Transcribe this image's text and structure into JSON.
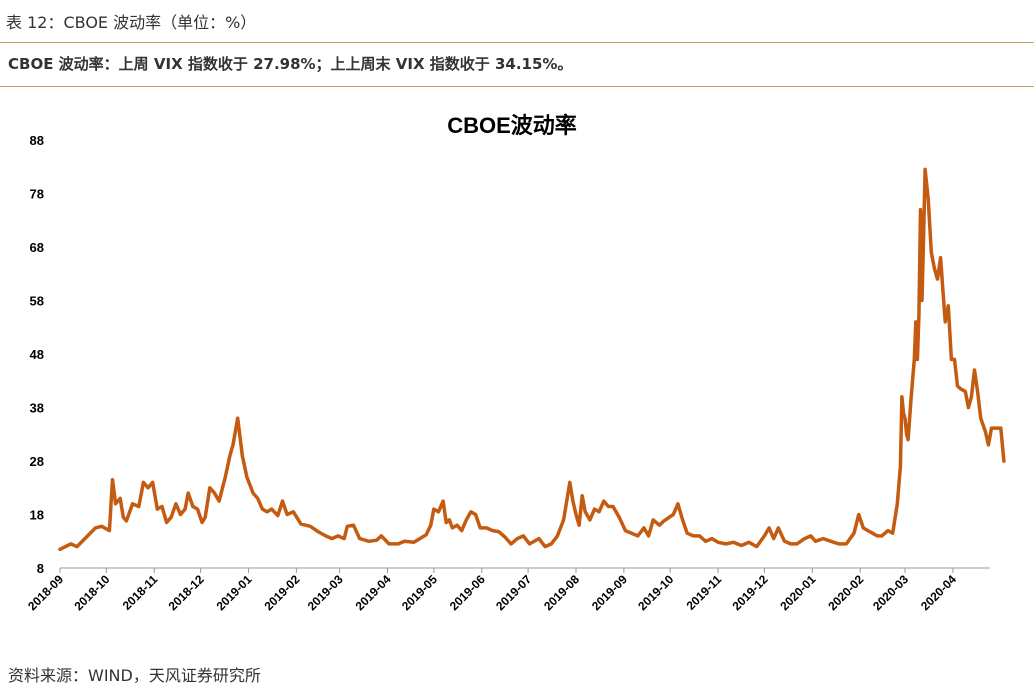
{
  "header": {
    "caption": "表 12：CBOE 波动率（单位：%）",
    "summary": "CBOE 波动率：上周 VIX 指数收于 27.98%；上上周末 VIX 指数收于 34.15%。"
  },
  "footer": {
    "source": "资料来源：WIND，天风证券研究所"
  },
  "colors": {
    "line": "#c55a11",
    "rule": "#c9a066"
  },
  "chart_data": {
    "type": "line",
    "title": "CBOE波动率",
    "xlabel": "",
    "ylabel": "",
    "ylim": [
      8,
      88
    ],
    "yticks": [
      8,
      18,
      28,
      38,
      48,
      58,
      68,
      78,
      88
    ],
    "xlim": [
      "2018-09-01",
      "2020-04-22"
    ],
    "xticks": [
      "2018-09",
      "2018-10",
      "2018-11",
      "2018-12",
      "2019-01",
      "2019-02",
      "2019-03",
      "2019-04",
      "2019-05",
      "2019-06",
      "2019-07",
      "2019-08",
      "2019-09",
      "2019-10",
      "2019-11",
      "2019-12",
      "2020-01",
      "2020-02",
      "2020-03",
      "2020-04"
    ],
    "grid": false,
    "legend": "none",
    "series": [
      {
        "points": [
          [
            "2018-09-01",
            11.5
          ],
          [
            "2018-09-08",
            12.5
          ],
          [
            "2018-09-12",
            12.0
          ],
          [
            "2018-09-24",
            15.5
          ],
          [
            "2018-09-28",
            15.8
          ],
          [
            "2018-10-03",
            15.0
          ],
          [
            "2018-10-05",
            24.5
          ],
          [
            "2018-10-07",
            20.0
          ],
          [
            "2018-10-10",
            21.0
          ],
          [
            "2018-10-12",
            17.5
          ],
          [
            "2018-10-14",
            16.8
          ],
          [
            "2018-10-18",
            20.0
          ],
          [
            "2018-10-22",
            19.5
          ],
          [
            "2018-10-25",
            24.0
          ],
          [
            "2018-10-28",
            23.0
          ],
          [
            "2018-10-31",
            24.0
          ],
          [
            "2018-11-03",
            19.0
          ],
          [
            "2018-11-06",
            19.5
          ],
          [
            "2018-11-09",
            16.5
          ],
          [
            "2018-11-12",
            17.5
          ],
          [
            "2018-11-15",
            20.0
          ],
          [
            "2018-11-18",
            18.0
          ],
          [
            "2018-11-21",
            19.0
          ],
          [
            "2018-11-23",
            22.0
          ],
          [
            "2018-11-26",
            19.5
          ],
          [
            "2018-11-29",
            19.0
          ],
          [
            "2018-12-02",
            16.5
          ],
          [
            "2018-12-04",
            17.5
          ],
          [
            "2018-12-07",
            23.0
          ],
          [
            "2018-12-10",
            22.0
          ],
          [
            "2018-12-13",
            20.5
          ],
          [
            "2018-12-17",
            25.0
          ],
          [
            "2018-12-20",
            29.0
          ],
          [
            "2018-12-22",
            31.0
          ],
          [
            "2018-12-25",
            36.0
          ],
          [
            "2018-12-28",
            29.0
          ],
          [
            "2018-12-31",
            25.0
          ],
          [
            "2019-01-04",
            22.0
          ],
          [
            "2019-01-07",
            21.0
          ],
          [
            "2019-01-10",
            19.0
          ],
          [
            "2019-01-13",
            18.5
          ],
          [
            "2019-01-16",
            19.0
          ],
          [
            "2019-01-20",
            17.8
          ],
          [
            "2019-01-23",
            20.5
          ],
          [
            "2019-01-26",
            18.0
          ],
          [
            "2019-01-30",
            18.5
          ],
          [
            "2019-02-04",
            16.2
          ],
          [
            "2019-02-10",
            15.8
          ],
          [
            "2019-02-15",
            14.8
          ],
          [
            "2019-02-20",
            14.0
          ],
          [
            "2019-02-24",
            13.5
          ],
          [
            "2019-02-28",
            14.0
          ],
          [
            "2019-03-04",
            13.5
          ],
          [
            "2019-03-06",
            15.8
          ],
          [
            "2019-03-10",
            16.0
          ],
          [
            "2019-03-14",
            13.5
          ],
          [
            "2019-03-20",
            13.0
          ],
          [
            "2019-03-25",
            13.2
          ],
          [
            "2019-03-28",
            14.0
          ],
          [
            "2019-04-02",
            12.5
          ],
          [
            "2019-04-08",
            12.5
          ],
          [
            "2019-04-12",
            13.0
          ],
          [
            "2019-04-18",
            12.8
          ],
          [
            "2019-04-22",
            13.5
          ],
          [
            "2019-04-26",
            14.2
          ],
          [
            "2019-04-29",
            16.0
          ],
          [
            "2019-05-01",
            19.0
          ],
          [
            "2019-05-04",
            18.5
          ],
          [
            "2019-05-07",
            20.5
          ],
          [
            "2019-05-09",
            16.5
          ],
          [
            "2019-05-11",
            17.0
          ],
          [
            "2019-05-13",
            15.5
          ],
          [
            "2019-05-16",
            16.0
          ],
          [
            "2019-05-19",
            15.0
          ],
          [
            "2019-05-22",
            17.0
          ],
          [
            "2019-05-25",
            18.5
          ],
          [
            "2019-05-28",
            18.0
          ],
          [
            "2019-05-31",
            15.5
          ],
          [
            "2019-06-04",
            15.5
          ],
          [
            "2019-06-08",
            15.0
          ],
          [
            "2019-06-12",
            14.8
          ],
          [
            "2019-06-16",
            13.8
          ],
          [
            "2019-06-20",
            12.5
          ],
          [
            "2019-06-24",
            13.5
          ],
          [
            "2019-06-28",
            14.0
          ],
          [
            "2019-07-02",
            12.5
          ],
          [
            "2019-07-08",
            13.5
          ],
          [
            "2019-07-12",
            12.0
          ],
          [
            "2019-07-16",
            12.5
          ],
          [
            "2019-07-20",
            14.0
          ],
          [
            "2019-07-24",
            17.0
          ],
          [
            "2019-07-28",
            24.0
          ],
          [
            "2019-07-30",
            20.5
          ],
          [
            "2019-08-01",
            18.0
          ],
          [
            "2019-08-03",
            16.0
          ],
          [
            "2019-08-05",
            21.5
          ],
          [
            "2019-08-07",
            18.5
          ],
          [
            "2019-08-10",
            17.0
          ],
          [
            "2019-08-13",
            19.0
          ],
          [
            "2019-08-16",
            18.5
          ],
          [
            "2019-08-19",
            20.5
          ],
          [
            "2019-08-22",
            19.5
          ],
          [
            "2019-08-25",
            19.5
          ],
          [
            "2019-08-29",
            17.5
          ],
          [
            "2019-09-02",
            15.0
          ],
          [
            "2019-09-06",
            14.5
          ],
          [
            "2019-09-10",
            14.0
          ],
          [
            "2019-09-14",
            15.5
          ],
          [
            "2019-09-17",
            14.0
          ],
          [
            "2019-09-20",
            17.0
          ],
          [
            "2019-09-24",
            16.0
          ],
          [
            "2019-09-27",
            16.8
          ],
          [
            "2019-10-03",
            18.0
          ],
          [
            "2019-10-06",
            20.0
          ],
          [
            "2019-10-09",
            17.0
          ],
          [
            "2019-10-12",
            14.5
          ],
          [
            "2019-10-16",
            14.0
          ],
          [
            "2019-10-20",
            14.0
          ],
          [
            "2019-10-24",
            13.0
          ],
          [
            "2019-10-28",
            13.5
          ],
          [
            "2019-11-01",
            12.8
          ],
          [
            "2019-11-06",
            12.5
          ],
          [
            "2019-11-11",
            12.8
          ],
          [
            "2019-11-16",
            12.2
          ],
          [
            "2019-11-21",
            12.8
          ],
          [
            "2019-11-26",
            12.0
          ],
          [
            "2019-12-01",
            14.0
          ],
          [
            "2019-12-04",
            15.5
          ],
          [
            "2019-12-07",
            13.5
          ],
          [
            "2019-12-10",
            15.5
          ],
          [
            "2019-12-14",
            13.0
          ],
          [
            "2019-12-18",
            12.5
          ],
          [
            "2019-12-22",
            12.5
          ],
          [
            "2019-12-27",
            13.5
          ],
          [
            "2019-12-31",
            14.0
          ],
          [
            "2020-01-03",
            13.0
          ],
          [
            "2020-01-08",
            13.5
          ],
          [
            "2020-01-13",
            13.0
          ],
          [
            "2020-01-18",
            12.5
          ],
          [
            "2020-01-23",
            12.5
          ],
          [
            "2020-01-28",
            14.5
          ],
          [
            "2020-01-31",
            18.0
          ],
          [
            "2020-02-03",
            15.5
          ],
          [
            "2020-02-06",
            15.0
          ],
          [
            "2020-02-09",
            14.5
          ],
          [
            "2020-02-12",
            14.0
          ],
          [
            "2020-02-15",
            14.0
          ],
          [
            "2020-02-19",
            15.0
          ],
          [
            "2020-02-22",
            14.5
          ],
          [
            "2020-02-25",
            20.0
          ],
          [
            "2020-02-27",
            27.0
          ],
          [
            "2020-02-28",
            40.0
          ],
          [
            "2020-02-29",
            37.0
          ],
          [
            "2020-03-01",
            36.0
          ],
          [
            "2020-03-02",
            33.0
          ],
          [
            "2020-03-03",
            32.0
          ],
          [
            "2020-03-05",
            40.0
          ],
          [
            "2020-03-07",
            47.0
          ],
          [
            "2020-03-08",
            54.0
          ],
          [
            "2020-03-09",
            47.0
          ],
          [
            "2020-03-10",
            55.0
          ],
          [
            "2020-03-11",
            75.0
          ],
          [
            "2020-03-12",
            58.0
          ],
          [
            "2020-03-13",
            70.0
          ],
          [
            "2020-03-14",
            82.5
          ],
          [
            "2020-03-16",
            77.0
          ],
          [
            "2020-03-18",
            67.0
          ],
          [
            "2020-03-20",
            64.0
          ],
          [
            "2020-03-22",
            62.0
          ],
          [
            "2020-03-24",
            66.0
          ],
          [
            "2020-03-25",
            62.0
          ],
          [
            "2020-03-27",
            54.0
          ],
          [
            "2020-03-29",
            57.0
          ],
          [
            "2020-03-31",
            47.0
          ],
          [
            "2020-04-02",
            47.0
          ],
          [
            "2020-04-04",
            42.0
          ],
          [
            "2020-04-06",
            41.5
          ],
          [
            "2020-04-09",
            41.0
          ],
          [
            "2020-04-11",
            38.0
          ],
          [
            "2020-04-13",
            40.0
          ],
          [
            "2020-04-15",
            45.0
          ],
          [
            "2020-04-17",
            41.0
          ],
          [
            "2020-04-19",
            36.0
          ],
          [
            "2020-04-22",
            33.5
          ],
          [
            "2020-04-24",
            31.0
          ],
          [
            "2020-04-26",
            34.15
          ],
          [
            "2020-05-02",
            34.15
          ],
          [
            "2020-05-04",
            27.98
          ]
        ]
      }
    ]
  }
}
